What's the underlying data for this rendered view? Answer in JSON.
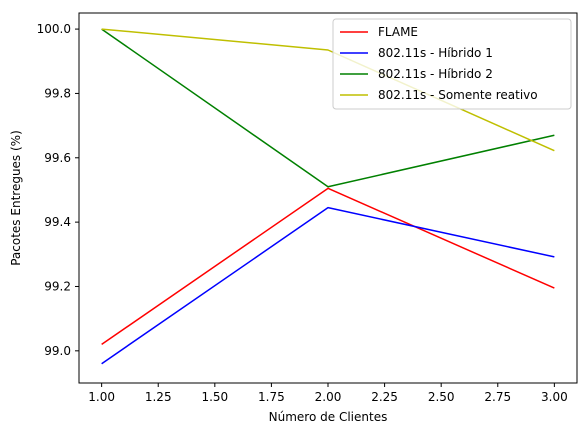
{
  "chart_data": {
    "type": "line",
    "title": "",
    "xlabel": "Número de Clientes",
    "ylabel": "Pacotes Entregues (%)",
    "xlim": [
      0.9,
      3.1
    ],
    "ylim": [
      98.9,
      100.05
    ],
    "xticks": [
      1.0,
      1.25,
      1.5,
      1.75,
      2.0,
      2.25,
      2.5,
      2.75,
      3.0
    ],
    "xtick_labels": [
      "1.00",
      "1.25",
      "1.50",
      "1.75",
      "2.00",
      "2.25",
      "2.50",
      "2.75",
      "3.00"
    ],
    "yticks": [
      99.0,
      99.2,
      99.4,
      99.6,
      99.8,
      100.0
    ],
    "ytick_labels": [
      "99.0",
      "99.2",
      "99.4",
      "99.6",
      "99.8",
      "100.0"
    ],
    "grid": false,
    "legend_position": "top-right",
    "x": [
      1,
      2,
      3
    ],
    "series": [
      {
        "name": "FLAME",
        "color": "#ff0000",
        "values": [
          99.02,
          99.505,
          99.195
        ]
      },
      {
        "name": "802.11s - Híbrido 1",
        "color": "#0000ff",
        "values": [
          98.96,
          99.445,
          99.292
        ]
      },
      {
        "name": "802.11s - Híbrido 2",
        "color": "#008000",
        "values": [
          100.0,
          99.51,
          99.67
        ]
      },
      {
        "name": "802.11s - Somente reativo",
        "color": "#bfbf00",
        "values": [
          100.0,
          99.935,
          99.622
        ]
      }
    ]
  }
}
